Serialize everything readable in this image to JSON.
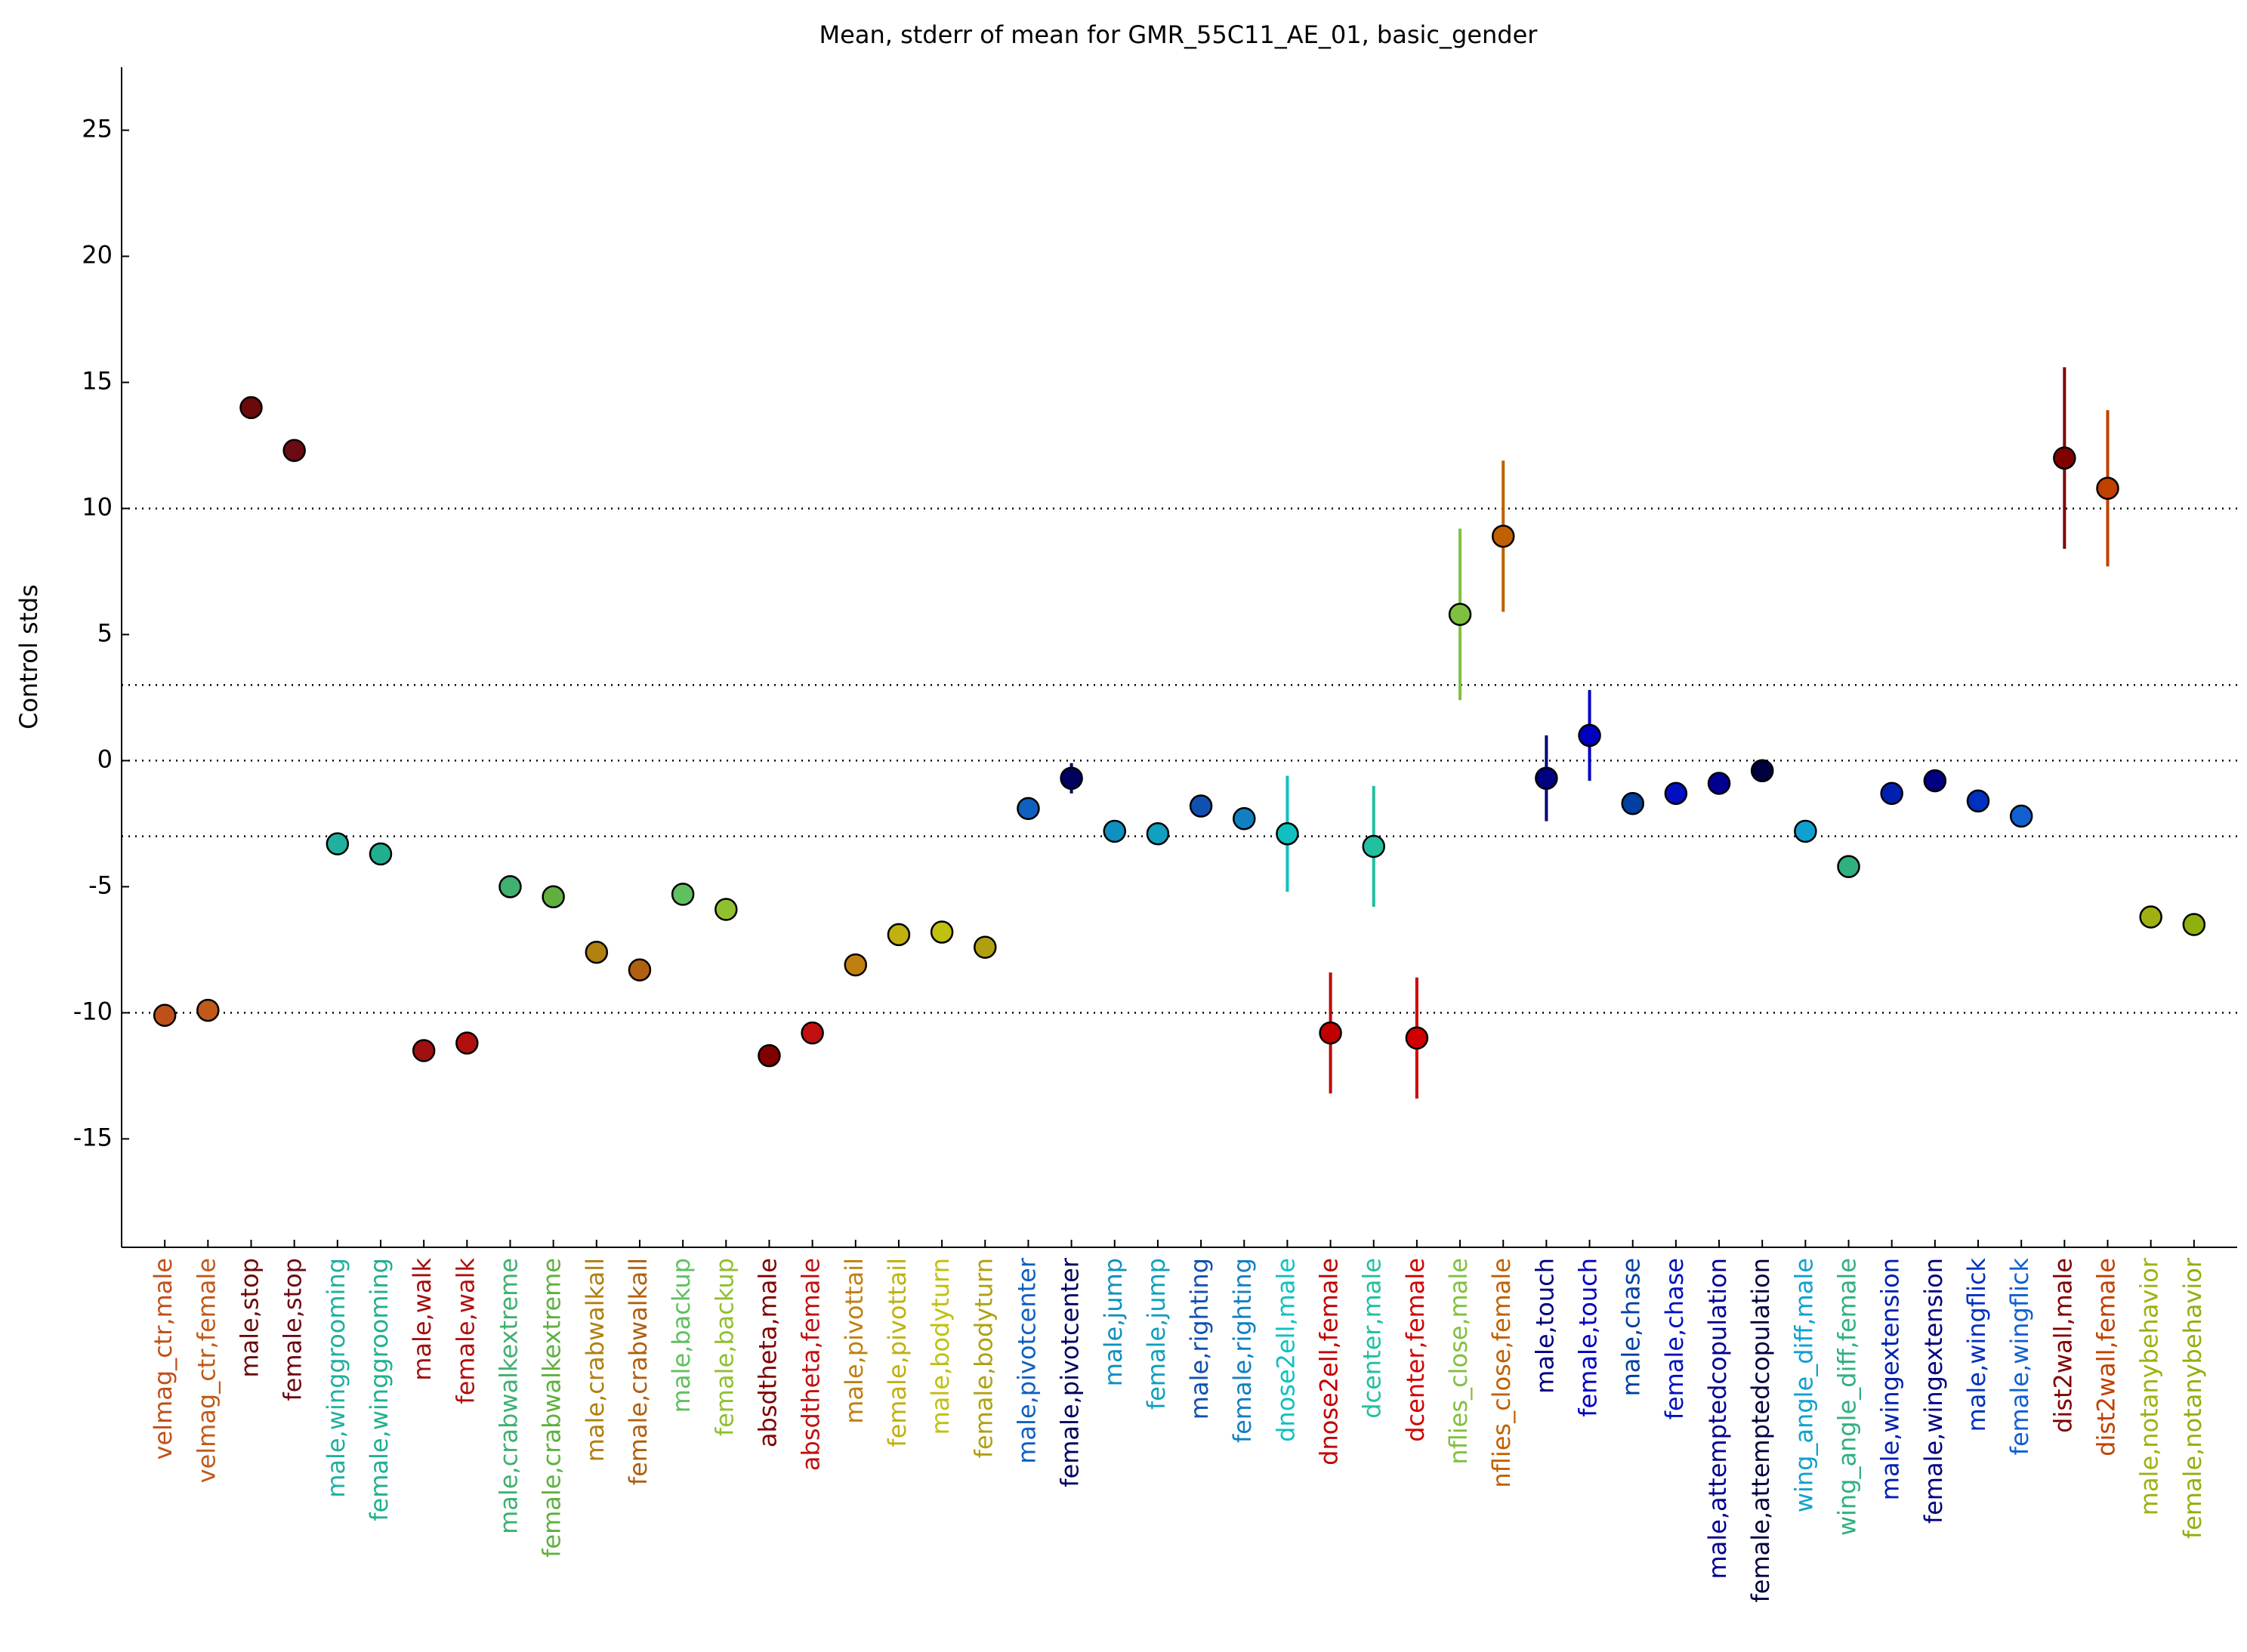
{
  "chart_data": {
    "type": "errorpoint",
    "title": "Mean, stderr of mean for GMR_55C11_AE_01, basic_gender",
    "y_label": "Control stds",
    "categories": [
      "velmag_ctr,male",
      "velmag_ctr,female",
      "male,stop",
      "female,stop",
      "male,winggrooming",
      "female,winggrooming",
      "male,walk",
      "female,walk",
      "male,crabwalkextreme",
      "female,crabwalkextreme",
      "male,crabwalkall",
      "female,crabwalkall",
      "male,backup",
      "female,backup",
      "absdtheta,male",
      "absdtheta,female",
      "male,pivottail",
      "female,pivottail",
      "male,bodyturn",
      "female,bodyturn",
      "male,pivotcenter",
      "female,pivotcenter",
      "male,jump",
      "female,jump",
      "male,righting",
      "female,righting",
      "dnose2ell,male",
      "dnose2ell,female",
      "dcenter,male",
      "dcenter,female",
      "nflies_close,male",
      "nflies_close,female",
      "male,touch",
      "female,touch",
      "male,chase",
      "female,chase",
      "male,attemptedcopulation",
      "female,attemptedcopulation",
      "wing_angle_diff,male",
      "wing_angle_diff,female",
      "male,wingextension",
      "female,wingextension",
      "male,wingflick",
      "female,wingflick",
      "dist2wall,male",
      "dist2wall,female",
      "male,notanybehavior",
      "female,notanybehavior"
    ],
    "values": [
      -10.1,
      -9.9,
      14.0,
      12.3,
      -3.3,
      -3.7,
      -11.5,
      -11.2,
      -5.0,
      -5.4,
      -7.6,
      -8.3,
      -5.3,
      -5.9,
      -11.7,
      -10.8,
      -8.1,
      -6.9,
      -6.8,
      -7.4,
      -1.9,
      -0.7,
      -2.8,
      -2.9,
      -1.8,
      -2.3,
      -2.9,
      -10.8,
      -3.4,
      -11.0,
      5.8,
      8.9,
      -0.7,
      1.0,
      -1.7,
      -1.3,
      -0.9,
      -0.4,
      -2.8,
      -4.2,
      -1.3,
      -0.8,
      -1.6,
      -2.2,
      12.0,
      10.8,
      -6.2,
      -6.5
    ],
    "errors": [
      0.2,
      0.2,
      0.3,
      0.3,
      0.2,
      0.2,
      0.2,
      0.2,
      0.2,
      0.2,
      0.2,
      0.2,
      0.2,
      0.2,
      0.2,
      0.2,
      0.2,
      0.2,
      0.2,
      0.2,
      0.3,
      0.6,
      0.2,
      0.2,
      0.2,
      0.2,
      2.3,
      2.4,
      2.4,
      2.4,
      3.4,
      3.0,
      1.7,
      1.8,
      0.2,
      0.2,
      0.2,
      0.3,
      0.2,
      0.2,
      0.2,
      0.2,
      0.2,
      0.3,
      3.6,
      3.1,
      0.2,
      0.2
    ],
    "colors": [
      "#c0501a",
      "#c05a1a",
      "#6b0a0a",
      "#6b0a14",
      "#20b0a0",
      "#20b090",
      "#a01010",
      "#b01010",
      "#40b070",
      "#60b040",
      "#b08010",
      "#b06010",
      "#60c060",
      "#90c030",
      "#800000",
      "#c01010",
      "#c08010",
      "#c0b010",
      "#c0c010",
      "#b0a010",
      "#1060c0",
      "#000060",
      "#1090c0",
      "#10a0c0",
      "#1050b0",
      "#1080c0",
      "#10c0c0",
      "#c00000",
      "#20c0a0",
      "#d00000",
      "#80c040",
      "#c06000",
      "#000080",
      "#0000c0",
      "#0040a0",
      "#0010c0",
      "#000090",
      "#000040",
      "#10a0d0",
      "#30b080",
      "#0020b0",
      "#000080",
      "#0030c0",
      "#1060d0",
      "#800000",
      "#c04000",
      "#a0b010",
      "#90b010"
    ],
    "ylim": [
      -19.3,
      27.5
    ],
    "yticks": [
      -15,
      -10,
      -5,
      0,
      5,
      10,
      15,
      20,
      25
    ],
    "reference_lines": [
      -10,
      -3,
      0,
      3,
      10
    ]
  }
}
